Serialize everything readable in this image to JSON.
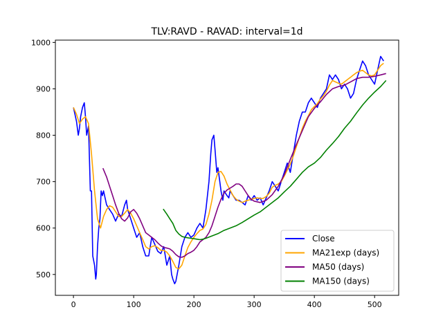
{
  "chart_data": {
    "type": "line",
    "title": "TLV:RAVD - RAVAD: interval=1d",
    "xlabel": "",
    "ylabel": "",
    "xlim": [
      -30,
      540
    ],
    "ylim": [
      455,
      1005
    ],
    "x_ticks": [
      0,
      100,
      200,
      300,
      400,
      500
    ],
    "y_ticks": [
      500,
      600,
      700,
      800,
      900,
      1000
    ],
    "grid": false,
    "legend_position": "lower-right",
    "series": [
      {
        "name": "Close",
        "color": "#0000ff",
        "x": [
          0,
          5,
          8,
          10,
          12,
          15,
          18,
          20,
          22,
          25,
          28,
          30,
          32,
          35,
          37,
          38,
          40,
          42,
          44,
          46,
          48,
          50,
          55,
          60,
          65,
          70,
          75,
          80,
          85,
          88,
          90,
          95,
          100,
          105,
          110,
          115,
          120,
          125,
          130,
          135,
          140,
          145,
          150,
          155,
          160,
          163,
          165,
          168,
          170,
          175,
          180,
          185,
          190,
          195,
          200,
          205,
          210,
          215,
          220,
          225,
          228,
          230,
          233,
          235,
          238,
          240,
          245,
          248,
          250,
          255,
          258,
          260,
          265,
          270,
          275,
          280,
          285,
          290,
          295,
          300,
          305,
          310,
          315,
          320,
          325,
          330,
          335,
          340,
          345,
          350,
          355,
          360,
          365,
          370,
          375,
          380,
          385,
          390,
          395,
          400,
          405,
          410,
          415,
          420,
          425,
          430,
          435,
          440,
          445,
          450,
          455,
          460,
          465,
          470,
          475,
          480,
          485,
          490,
          495,
          500,
          505,
          510,
          515
        ],
        "y": [
          860,
          830,
          800,
          815,
          840,
          860,
          870,
          840,
          800,
          820,
          680,
          680,
          540,
          520,
          490,
          500,
          560,
          600,
          620,
          680,
          670,
          680,
          650,
          640,
          630,
          615,
          630,
          625,
          650,
          660,
          640,
          620,
          600,
          580,
          590,
          560,
          540,
          540,
          580,
          565,
          550,
          545,
          560,
          520,
          540,
          500,
          490,
          480,
          485,
          520,
          560,
          580,
          590,
          580,
          585,
          600,
          610,
          600,
          640,
          700,
          760,
          790,
          800,
          770,
          720,
          730,
          680,
          660,
          680,
          670,
          665,
          680,
          670,
          660,
          660,
          655,
          650,
          670,
          660,
          670,
          660,
          665,
          650,
          665,
          680,
          700,
          690,
          680,
          700,
          720,
          740,
          720,
          760,
          800,
          830,
          850,
          850,
          870,
          880,
          870,
          860,
          880,
          890,
          900,
          930,
          920,
          930,
          920,
          900,
          910,
          900,
          880,
          890,
          920,
          940,
          960,
          950,
          930,
          920,
          910,
          940,
          970,
          960
        ]
      },
      {
        "name": "MA21exp (days)",
        "color": "#ffa500",
        "x": [
          0,
          5,
          10,
          15,
          20,
          25,
          30,
          35,
          40,
          45,
          50,
          55,
          60,
          65,
          70,
          75,
          80,
          85,
          90,
          95,
          100,
          105,
          110,
          115,
          120,
          125,
          130,
          135,
          140,
          145,
          150,
          155,
          160,
          165,
          170,
          175,
          180,
          185,
          190,
          195,
          200,
          205,
          210,
          215,
          220,
          225,
          230,
          235,
          240,
          245,
          250,
          255,
          260,
          265,
          270,
          275,
          280,
          285,
          290,
          295,
          300,
          305,
          310,
          315,
          320,
          325,
          330,
          335,
          340,
          345,
          350,
          355,
          360,
          365,
          370,
          375,
          380,
          385,
          390,
          395,
          400,
          405,
          410,
          415,
          420,
          425,
          430,
          435,
          440,
          445,
          450,
          455,
          460,
          465,
          470,
          475,
          480,
          485,
          490,
          495,
          500,
          505,
          510,
          515
        ],
        "y": [
          860,
          845,
          825,
          835,
          840,
          825,
          760,
          680,
          620,
          600,
          625,
          640,
          648,
          645,
          635,
          625,
          625,
          632,
          640,
          632,
          620,
          605,
          590,
          575,
          560,
          555,
          560,
          562,
          558,
          552,
          552,
          548,
          540,
          528,
          515,
          512,
          520,
          540,
          558,
          570,
          580,
          588,
          595,
          598,
          608,
          630,
          660,
          700,
          720,
          722,
          712,
          695,
          682,
          670,
          662,
          658,
          655,
          658,
          660,
          662,
          664,
          665,
          664,
          664,
          668,
          675,
          688,
          692,
          695,
          700,
          712,
          725,
          738,
          755,
          775,
          795,
          815,
          830,
          842,
          855,
          862,
          868,
          878,
          885,
          895,
          908,
          918,
          915,
          912,
          910,
          915,
          920,
          925,
          930,
          935,
          938,
          940,
          935,
          930,
          928,
          930,
          940,
          950,
          955
        ]
      },
      {
        "name": "MA50 (days)",
        "color": "#800080",
        "x": [
          49,
          55,
          60,
          65,
          70,
          75,
          80,
          85,
          90,
          95,
          100,
          105,
          110,
          115,
          120,
          125,
          130,
          135,
          140,
          145,
          150,
          155,
          160,
          165,
          170,
          175,
          180,
          185,
          190,
          195,
          200,
          205,
          210,
          215,
          220,
          225,
          230,
          235,
          240,
          245,
          250,
          255,
          260,
          265,
          270,
          275,
          280,
          285,
          290,
          295,
          300,
          310,
          320,
          330,
          340,
          350,
          360,
          370,
          380,
          390,
          400,
          410,
          420,
          430,
          440,
          450,
          460,
          470,
          480,
          490,
          500,
          510,
          519
        ],
        "y": [
          729,
          710,
          690,
          670,
          650,
          632,
          620,
          615,
          622,
          635,
          640,
          632,
          620,
          605,
          590,
          585,
          580,
          575,
          568,
          562,
          558,
          557,
          555,
          550,
          543,
          538,
          537,
          540,
          545,
          548,
          552,
          560,
          570,
          575,
          580,
          590,
          605,
          625,
          645,
          662,
          675,
          682,
          686,
          690,
          695,
          695,
          690,
          680,
          670,
          662,
          658,
          655,
          660,
          672,
          690,
          715,
          748,
          780,
          810,
          840,
          858,
          872,
          888,
          900,
          905,
          908,
          915,
          922,
          925,
          925,
          927,
          930,
          933
        ]
      },
      {
        "name": "MA150 (days)",
        "color": "#008000",
        "x": [
          149,
          155,
          160,
          165,
          170,
          175,
          180,
          185,
          190,
          195,
          200,
          205,
          210,
          215,
          220,
          230,
          240,
          250,
          260,
          270,
          280,
          290,
          300,
          310,
          320,
          330,
          340,
          350,
          360,
          370,
          380,
          390,
          400,
          410,
          420,
          430,
          440,
          450,
          460,
          470,
          480,
          490,
          500,
          510,
          519
        ],
        "y": [
          641,
          630,
          620,
          610,
          595,
          587,
          582,
          580,
          579,
          578,
          577,
          576,
          575,
          576,
          578,
          583,
          588,
          595,
          600,
          605,
          612,
          620,
          628,
          635,
          645,
          655,
          665,
          678,
          690,
          705,
          720,
          732,
          740,
          752,
          768,
          782,
          797,
          815,
          830,
          848,
          865,
          880,
          893,
          905,
          918
        ]
      }
    ]
  }
}
